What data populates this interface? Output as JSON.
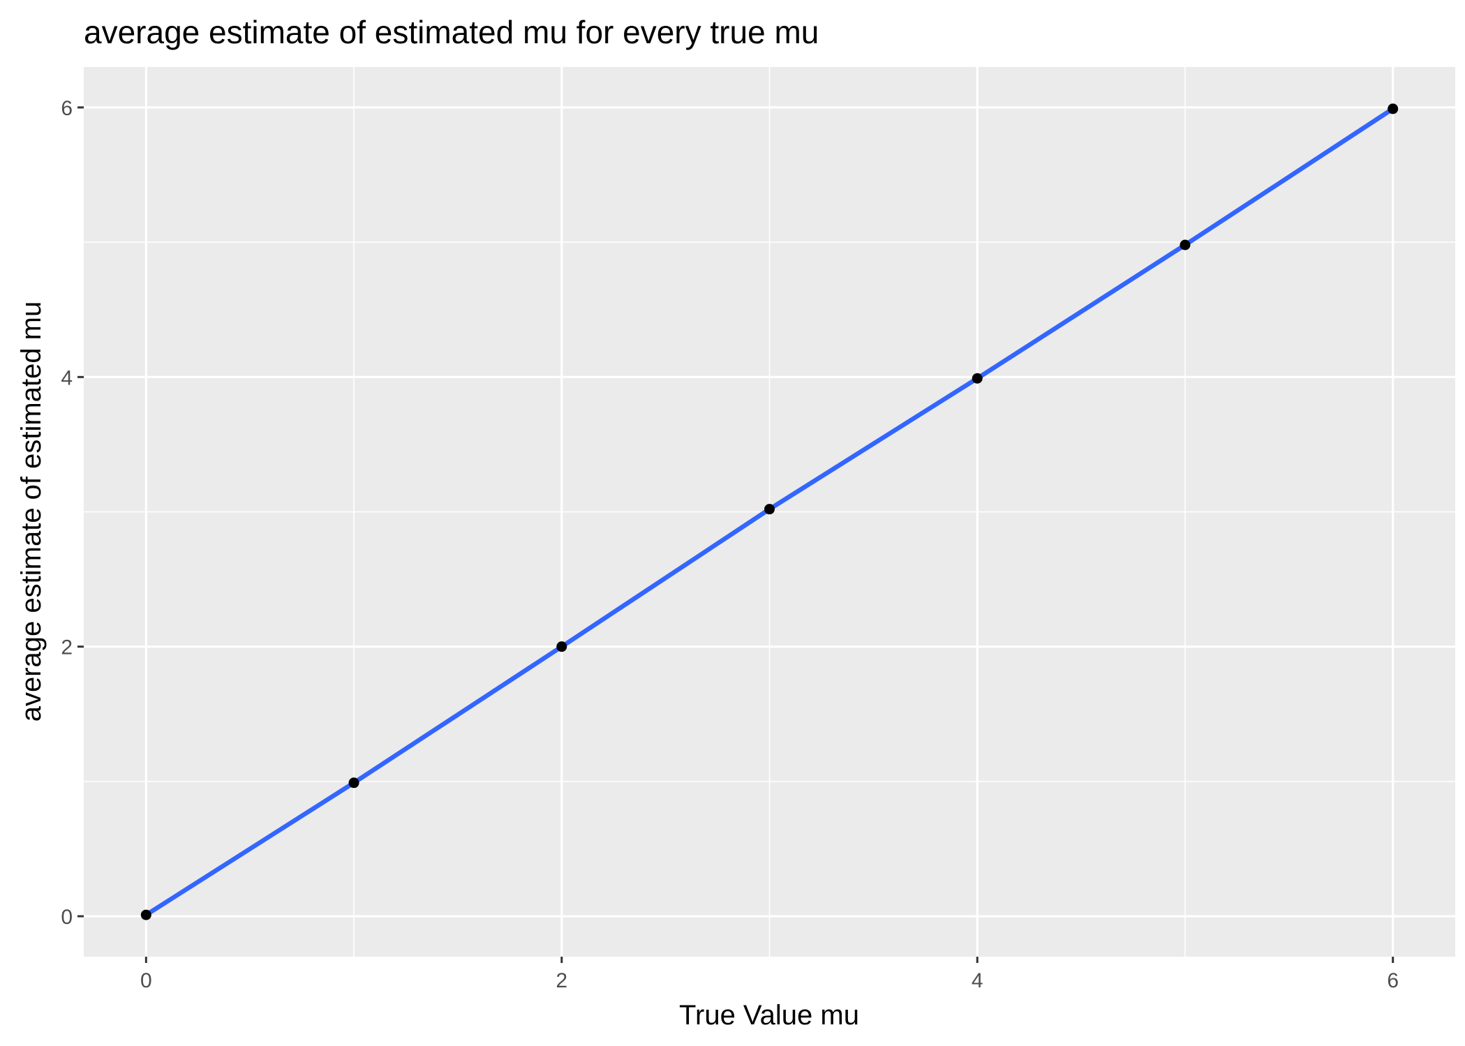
{
  "chart_data": {
    "type": "line",
    "title": "average estimate of estimated mu for every true mu",
    "xlabel": "True Value mu",
    "ylabel": "average estimate of estimated mu",
    "xlim": [
      -0.3,
      6.3
    ],
    "ylim": [
      -0.3,
      6.3
    ],
    "x_ticks": [
      0,
      2,
      4,
      6
    ],
    "y_ticks": [
      0,
      2,
      4,
      6
    ],
    "x_minor": [
      1,
      3,
      5
    ],
    "y_minor": [
      1,
      3,
      5
    ],
    "grid": true,
    "legend": "none",
    "series": [
      {
        "x": [
          0,
          1,
          2,
          3,
          4,
          5,
          6
        ],
        "values": [
          0.01,
          0.99,
          2.0,
          3.02,
          3.99,
          4.98,
          5.99
        ],
        "line_color": "#3366FF",
        "point_color": "#000000"
      }
    ]
  },
  "colors": {
    "panel_background": "#EBEBEB",
    "grid": "#FFFFFF",
    "line": "#3366FF",
    "points": "#000000",
    "tick_label": "#4D4D4D",
    "axis_tick": "#333333"
  }
}
